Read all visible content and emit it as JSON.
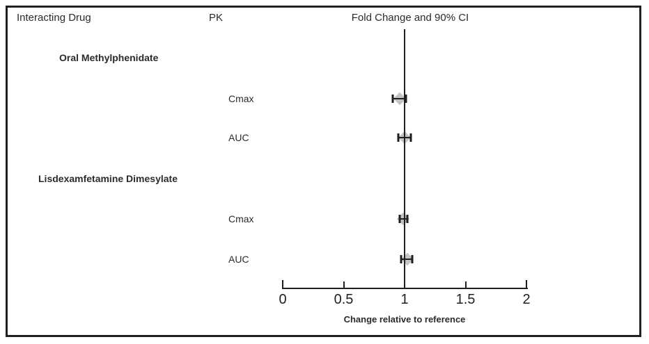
{
  "header": {
    "col_drug": "Interacting Drug",
    "col_pk": "PK",
    "col_fold": "Fold Change and 90% CI"
  },
  "chart_data": {
    "type": "forest",
    "title": "Fold Change and 90% CI",
    "xlabel": "Change relative to reference",
    "reference_value": 1,
    "axis": {
      "min": 0,
      "max": 2,
      "ticks": [
        0,
        0.5,
        1,
        1.5,
        2
      ],
      "tick_labels": [
        "0",
        "0.5",
        "1",
        "1.5",
        "2"
      ]
    },
    "groups": [
      {
        "label": "Oral Methylphenidate",
        "rows": [
          {
            "pk": "Cmax",
            "estimate": 0.96,
            "ci_low": 0.9,
            "ci_high": 1.01
          },
          {
            "pk": "AUC",
            "estimate": 1.0,
            "ci_low": 0.95,
            "ci_high": 1.05
          }
        ]
      },
      {
        "label": "Lisdexamfetamine Dimesylate",
        "rows": [
          {
            "pk": "Cmax",
            "estimate": 0.99,
            "ci_low": 0.96,
            "ci_high": 1.02
          },
          {
            "pk": "AUC",
            "estimate": 1.02,
            "ci_low": 0.97,
            "ci_high": 1.06
          }
        ]
      }
    ],
    "colors": {
      "marker": "#c3c3c3",
      "line": "#1f1f1f"
    }
  }
}
